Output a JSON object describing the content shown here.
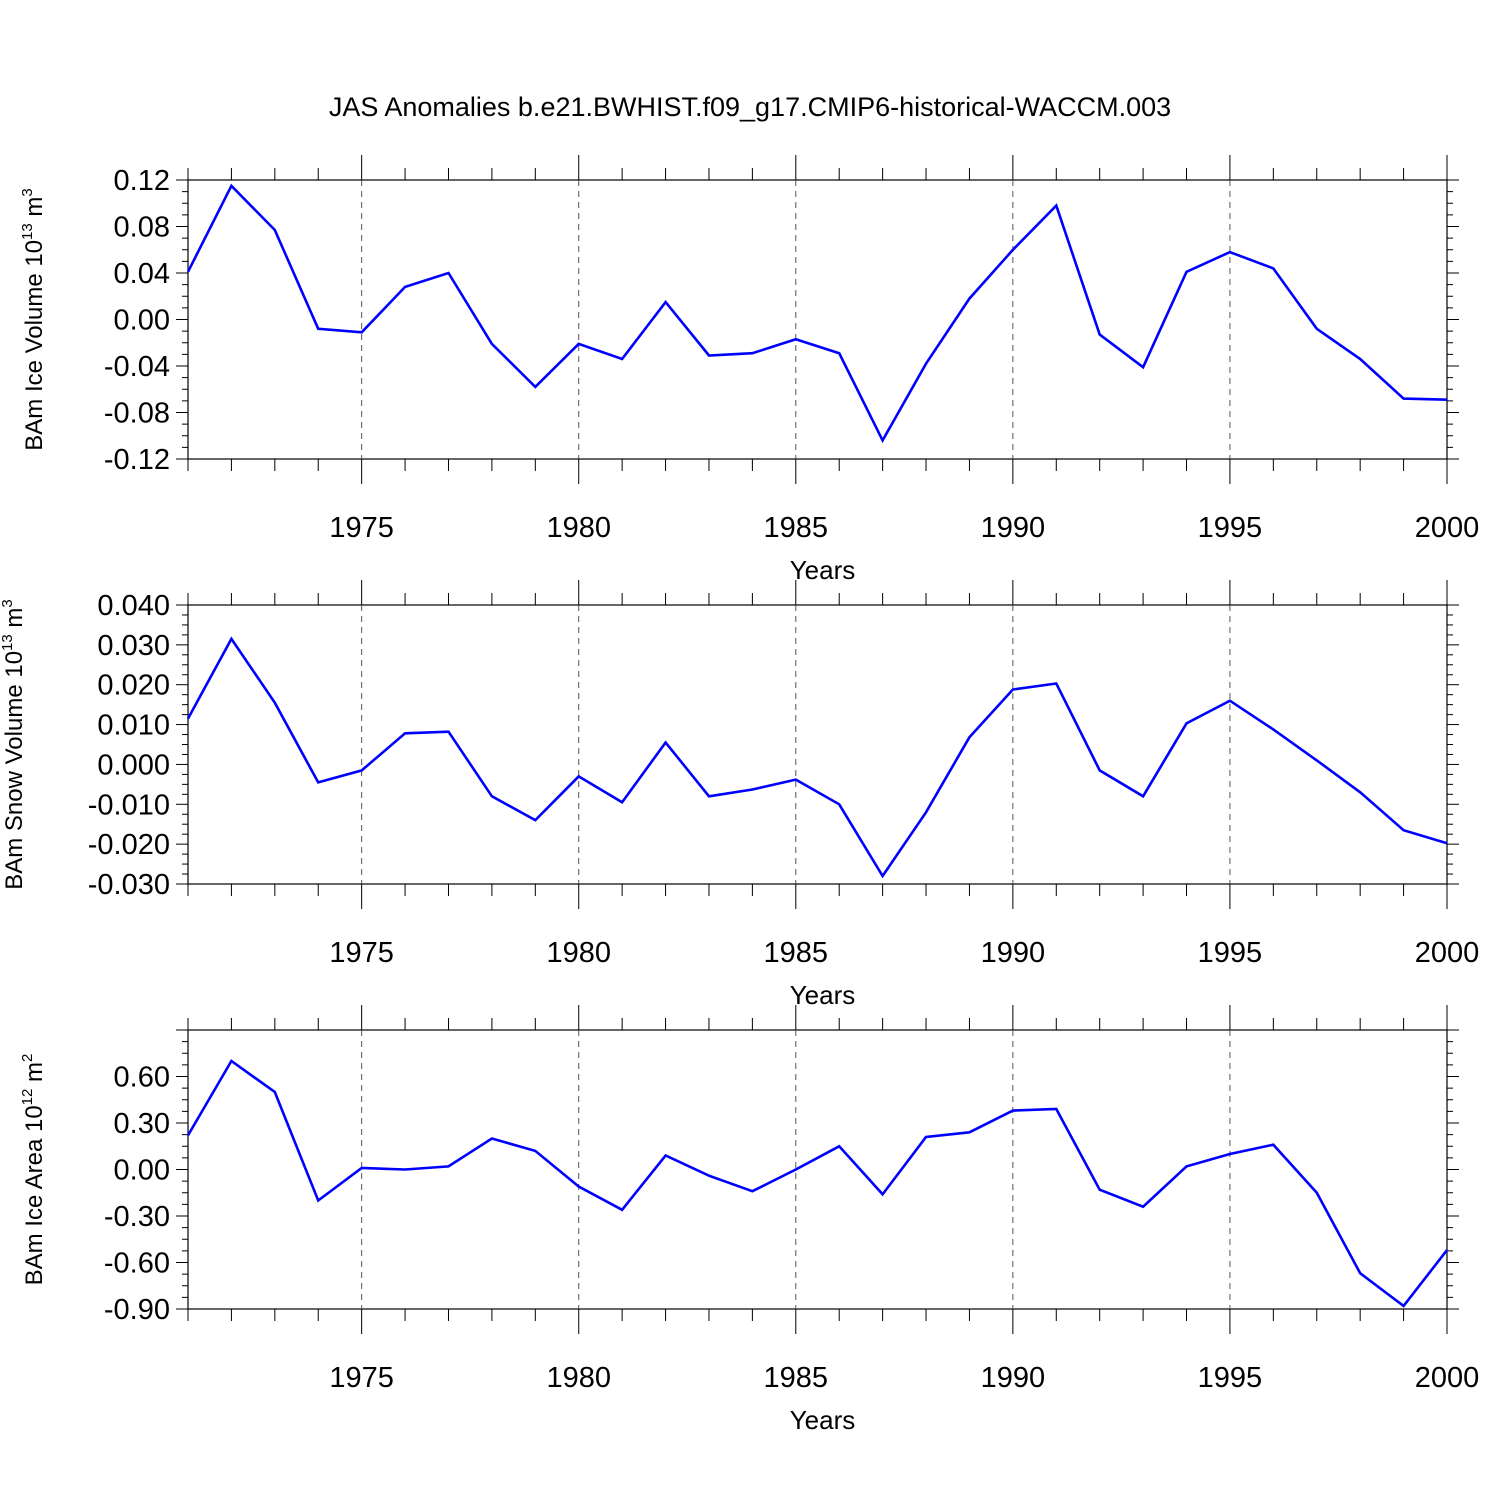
{
  "title": "JAS Anomalies b.e21.BWHIST.f09_g17.CMIP6-historical-WACCM.003",
  "line_color": "#0000ff",
  "chart_data": [
    {
      "type": "line",
      "ylabel_main": "BAm Ice Volume 10",
      "ylabel_exp": "13",
      "ylabel_unit": " m",
      "ylabel_unit_exp": "3",
      "xlabel": "Years",
      "xlim": [
        1971,
        2000
      ],
      "ylim": [
        -0.12,
        0.12
      ],
      "xticks": [
        "1975",
        "1980",
        "1985",
        "1990",
        "1995",
        "2000"
      ],
      "yticks": [
        "0.12",
        "0.08",
        "0.04",
        "0.00",
        "-0.04",
        "-0.08",
        "-0.12"
      ],
      "grid": "vertical dashed at major x ticks",
      "series": [
        {
          "x": [
            1971,
            1972,
            1973,
            1974,
            1975,
            1976,
            1977,
            1978,
            1979,
            1980,
            1981,
            1982,
            1983,
            1984,
            1985,
            1986,
            1987,
            1988,
            1989,
            1990,
            1991,
            1992,
            1993,
            1994,
            1995,
            1996,
            1997,
            1998,
            1999,
            2000
          ],
          "values": [
            0.041,
            0.115,
            0.077,
            -0.008,
            -0.011,
            0.028,
            0.04,
            -0.021,
            -0.058,
            -0.021,
            -0.034,
            0.015,
            -0.031,
            -0.029,
            -0.017,
            -0.029,
            -0.104,
            -0.038,
            0.018,
            0.06,
            0.098,
            -0.013,
            -0.041,
            0.041,
            0.058,
            0.044,
            -0.008,
            -0.034,
            -0.068,
            -0.069
          ]
        }
      ]
    },
    {
      "type": "line",
      "ylabel_main": "BAm Snow Volume 10",
      "ylabel_exp": "13",
      "ylabel_unit": " m",
      "ylabel_unit_exp": "3",
      "xlabel": "Years",
      "xlim": [
        1971,
        2000
      ],
      "ylim": [
        -0.03,
        0.04
      ],
      "xticks": [
        "1975",
        "1980",
        "1985",
        "1990",
        "1995",
        "2000"
      ],
      "yticks": [
        "0.040",
        "0.030",
        "0.020",
        "0.010",
        "0.000",
        "-0.010",
        "-0.020",
        "-0.030"
      ],
      "grid": "vertical dashed at major x ticks",
      "series": [
        {
          "x": [
            1971,
            1972,
            1973,
            1974,
            1975,
            1976,
            1977,
            1978,
            1979,
            1980,
            1981,
            1982,
            1983,
            1984,
            1985,
            1986,
            1987,
            1988,
            1989,
            1990,
            1991,
            1992,
            1993,
            1994,
            1995,
            1996,
            1997,
            1998,
            1999,
            2000
          ],
          "values": [
            0.0115,
            0.0315,
            0.0155,
            -0.0045,
            -0.0015,
            0.0078,
            0.0082,
            -0.008,
            -0.014,
            -0.003,
            -0.0095,
            0.0055,
            -0.008,
            -0.0063,
            -0.0038,
            -0.01,
            -0.028,
            -0.012,
            0.0068,
            0.0188,
            0.0203,
            -0.0015,
            -0.008,
            0.0103,
            0.016,
            0.0088,
            0.001,
            -0.007,
            -0.0165,
            -0.0198
          ]
        }
      ]
    },
    {
      "type": "line",
      "ylabel_main": "BAm Ice Area 10",
      "ylabel_exp": "12",
      "ylabel_unit": " m",
      "ylabel_unit_exp": "2",
      "xlabel": "Years",
      "xlim": [
        1971,
        2000
      ],
      "ylim": [
        -0.9,
        0.9
      ],
      "xticks": [
        "1975",
        "1980",
        "1985",
        "1990",
        "1995",
        "2000"
      ],
      "yticks": [
        "0.60",
        "0.30",
        "0.00",
        "-0.30",
        "-0.60",
        "-0.90"
      ],
      "grid": "vertical dashed at major x ticks",
      "series": [
        {
          "x": [
            1971,
            1972,
            1973,
            1974,
            1975,
            1976,
            1977,
            1978,
            1979,
            1980,
            1981,
            1982,
            1983,
            1984,
            1985,
            1986,
            1987,
            1988,
            1989,
            1990,
            1991,
            1992,
            1993,
            1994,
            1995,
            1996,
            1997,
            1998,
            1999,
            2000
          ],
          "values": [
            0.22,
            0.7,
            0.5,
            -0.2,
            0.01,
            0.0,
            0.02,
            0.2,
            0.12,
            -0.11,
            -0.26,
            0.09,
            -0.04,
            -0.14,
            0.0,
            0.15,
            -0.16,
            0.21,
            0.24,
            0.38,
            0.39,
            -0.13,
            -0.24,
            0.02,
            0.1,
            0.16,
            -0.15,
            -0.67,
            -0.88,
            -0.52
          ]
        }
      ]
    }
  ]
}
